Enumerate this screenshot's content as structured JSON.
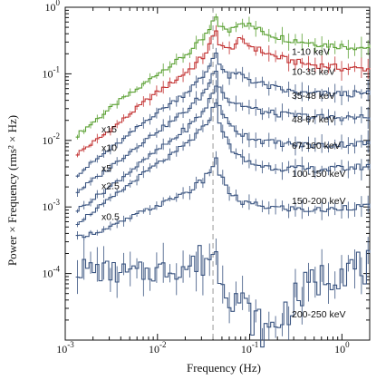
{
  "chart_data": {
    "type": "line",
    "title": "",
    "xlabel": "Frequency (Hz)",
    "ylabel": "Power × Frequency (rms² × Hz)",
    "xscale": "log",
    "yscale": "log",
    "xlim": [
      0.001,
      2
    ],
    "ylim": [
      1e-05,
      1
    ],
    "xtick_labels": [
      {
        "value": 0.001,
        "base": "10",
        "exp": "-3"
      },
      {
        "value": 0.01,
        "base": "10",
        "exp": "-2"
      },
      {
        "value": 0.1,
        "base": "10",
        "exp": "-1"
      },
      {
        "value": 1,
        "base": "10",
        "exp": "0"
      }
    ],
    "ytick_labels": [
      {
        "value": 0.0001,
        "base": "10",
        "exp": "-4"
      },
      {
        "value": 0.001,
        "base": "10",
        "exp": "-3"
      },
      {
        "value": 0.01,
        "base": "10",
        "exp": "-2"
      },
      {
        "value": 0.1,
        "base": "10",
        "exp": "-1"
      },
      {
        "value": 1,
        "base": "10",
        "exp": "0"
      }
    ],
    "qpo_frequency": 0.04,
    "multipliers": [
      {
        "label": "x15",
        "value": 0.012
      },
      {
        "label": "x10",
        "value": 0.0063
      },
      {
        "label": "x5",
        "value": 0.0031
      },
      {
        "label": "x2.5",
        "value": 0.0017
      },
      {
        "label": "x0.5",
        "value": 0.00058
      }
    ],
    "series": [
      {
        "label": "1-10 keV",
        "label_y": 0.22,
        "color": "#5aa032",
        "points": [
          [
            0.0013,
            0.012
          ],
          [
            0.0025,
            0.025
          ],
          [
            0.004,
            0.042
          ],
          [
            0.006,
            0.06
          ],
          [
            0.009,
            0.095
          ],
          [
            0.015,
            0.15
          ],
          [
            0.022,
            0.22
          ],
          [
            0.03,
            0.33
          ],
          [
            0.037,
            0.5
          ],
          [
            0.041,
            0.75
          ],
          [
            0.045,
            0.55
          ],
          [
            0.055,
            0.42
          ],
          [
            0.075,
            0.62
          ],
          [
            0.1,
            0.52
          ],
          [
            0.15,
            0.4
          ],
          [
            0.25,
            0.33
          ],
          [
            0.4,
            0.3
          ],
          [
            0.7,
            0.27
          ],
          [
            1.0,
            0.26
          ],
          [
            1.5,
            0.25
          ],
          [
            2.0,
            0.25
          ]
        ]
      },
      {
        "label": "10-35 keV",
        "label_y": 0.11,
        "color": "#c23030",
        "points": [
          [
            0.0013,
            0.0063
          ],
          [
            0.0025,
            0.012
          ],
          [
            0.004,
            0.02
          ],
          [
            0.006,
            0.032
          ],
          [
            0.009,
            0.05
          ],
          [
            0.015,
            0.08
          ],
          [
            0.022,
            0.12
          ],
          [
            0.03,
            0.18
          ],
          [
            0.037,
            0.3
          ],
          [
            0.041,
            0.45
          ],
          [
            0.045,
            0.3
          ],
          [
            0.055,
            0.22
          ],
          [
            0.075,
            0.32
          ],
          [
            0.1,
            0.26
          ],
          [
            0.15,
            0.2
          ],
          [
            0.25,
            0.16
          ],
          [
            0.4,
            0.14
          ],
          [
            0.7,
            0.13
          ],
          [
            1.0,
            0.12
          ],
          [
            1.5,
            0.12
          ],
          [
            2.0,
            0.12
          ]
        ]
      },
      {
        "label": "35-48 keV",
        "label_y": 0.048,
        "color": "#3a5480",
        "points": [
          [
            0.0013,
            0.0031
          ],
          [
            0.0025,
            0.0062
          ],
          [
            0.004,
            0.01
          ],
          [
            0.006,
            0.016
          ],
          [
            0.009,
            0.025
          ],
          [
            0.015,
            0.04
          ],
          [
            0.022,
            0.06
          ],
          [
            0.03,
            0.09
          ],
          [
            0.037,
            0.15
          ],
          [
            0.041,
            0.24
          ],
          [
            0.045,
            0.14
          ],
          [
            0.055,
            0.09
          ],
          [
            0.075,
            0.1
          ],
          [
            0.1,
            0.08
          ],
          [
            0.15,
            0.065
          ],
          [
            0.25,
            0.055
          ],
          [
            0.4,
            0.05
          ],
          [
            0.7,
            0.05
          ],
          [
            1.0,
            0.05
          ],
          [
            1.5,
            0.05
          ],
          [
            2.0,
            0.05
          ]
        ]
      },
      {
        "label": "48-67 keV",
        "label_y": 0.021,
        "color": "#3a5480",
        "points": [
          [
            0.0013,
            0.0017
          ],
          [
            0.0025,
            0.0033
          ],
          [
            0.004,
            0.0055
          ],
          [
            0.006,
            0.0085
          ],
          [
            0.009,
            0.013
          ],
          [
            0.015,
            0.021
          ],
          [
            0.022,
            0.032
          ],
          [
            0.03,
            0.05
          ],
          [
            0.037,
            0.085
          ],
          [
            0.041,
            0.13
          ],
          [
            0.045,
            0.07
          ],
          [
            0.055,
            0.04
          ],
          [
            0.075,
            0.035
          ],
          [
            0.1,
            0.03
          ],
          [
            0.15,
            0.026
          ],
          [
            0.25,
            0.024
          ],
          [
            0.4,
            0.023
          ],
          [
            0.7,
            0.022
          ],
          [
            1.0,
            0.022
          ],
          [
            1.5,
            0.022
          ],
          [
            2.0,
            0.022
          ]
        ]
      },
      {
        "label": "67-100 keV",
        "label_y": 0.0085,
        "color": "#3a5480",
        "points": [
          [
            0.0013,
            0.0009
          ],
          [
            0.0025,
            0.0017
          ],
          [
            0.004,
            0.0028
          ],
          [
            0.006,
            0.0043
          ],
          [
            0.009,
            0.0067
          ],
          [
            0.015,
            0.011
          ],
          [
            0.022,
            0.017
          ],
          [
            0.03,
            0.027
          ],
          [
            0.037,
            0.045
          ],
          [
            0.041,
            0.07
          ],
          [
            0.045,
            0.035
          ],
          [
            0.055,
            0.018
          ],
          [
            0.075,
            0.013
          ],
          [
            0.1,
            0.011
          ],
          [
            0.15,
            0.0095
          ],
          [
            0.25,
            0.0088
          ],
          [
            0.4,
            0.0085
          ],
          [
            0.7,
            0.0085
          ],
          [
            1.0,
            0.0088
          ],
          [
            1.5,
            0.009
          ],
          [
            2.0,
            0.009
          ]
        ]
      },
      {
        "label": "100-150 keV",
        "label_y": 0.0032,
        "color": "#3a5480",
        "points": [
          [
            0.0013,
            0.00058
          ],
          [
            0.0025,
            0.0011
          ],
          [
            0.004,
            0.0018
          ],
          [
            0.006,
            0.0028
          ],
          [
            0.009,
            0.0042
          ],
          [
            0.015,
            0.0065
          ],
          [
            0.022,
            0.01
          ],
          [
            0.03,
            0.015
          ],
          [
            0.037,
            0.025
          ],
          [
            0.041,
            0.04
          ],
          [
            0.045,
            0.02
          ],
          [
            0.055,
            0.009
          ],
          [
            0.075,
            0.0055
          ],
          [
            0.1,
            0.0045
          ],
          [
            0.15,
            0.004
          ],
          [
            0.25,
            0.0038
          ],
          [
            0.4,
            0.0037
          ],
          [
            0.7,
            0.0037
          ],
          [
            1.0,
            0.0038
          ],
          [
            1.5,
            0.004
          ],
          [
            2.0,
            0.004
          ]
        ]
      },
      {
        "label": "150-200 keV",
        "label_y": 0.00125,
        "color": "#3a5480",
        "points": [
          [
            0.0013,
            0.00035
          ],
          [
            0.0025,
            0.00045
          ],
          [
            0.004,
            0.0006
          ],
          [
            0.006,
            0.0008
          ],
          [
            0.009,
            0.001
          ],
          [
            0.015,
            0.0014
          ],
          [
            0.022,
            0.0018
          ],
          [
            0.03,
            0.0025
          ],
          [
            0.037,
            0.0038
          ],
          [
            0.041,
            0.0055
          ],
          [
            0.045,
            0.0032
          ],
          [
            0.055,
            0.0018
          ],
          [
            0.075,
            0.0012
          ],
          [
            0.1,
            0.0011
          ],
          [
            0.15,
            0.001
          ],
          [
            0.25,
            0.00095
          ],
          [
            0.4,
            0.0009
          ],
          [
            0.7,
            0.0009
          ],
          [
            1.0,
            0.001
          ],
          [
            1.5,
            0.001
          ],
          [
            2.0,
            0.001
          ]
        ]
      },
      {
        "label": "200-250 keV",
        "label_y": 2.5e-05,
        "color": "#3a5480",
        "points": [
          [
            0.0013,
            0.00012
          ],
          [
            0.0025,
            0.00011
          ],
          [
            0.004,
            0.0001
          ],
          [
            0.006,
            0.0001
          ],
          [
            0.009,
            0.00011
          ],
          [
            0.015,
            0.00012
          ],
          [
            0.022,
            0.00013
          ],
          [
            0.03,
            0.00016
          ],
          [
            0.037,
            0.0002
          ],
          [
            0.041,
            0.00018
          ],
          [
            0.045,
            0.00012
          ],
          [
            0.055,
            6e-05
          ],
          [
            0.075,
            4e-05
          ],
          [
            0.1,
            2.2e-05
          ],
          [
            0.15,
            1.2e-05
          ],
          [
            0.25,
            3e-05
          ],
          [
            0.4,
            6e-05
          ],
          [
            0.7,
            0.0001
          ],
          [
            1.0,
            0.00012
          ],
          [
            1.5,
            0.00012
          ],
          [
            2.0,
            0.00012
          ]
        ]
      }
    ]
  }
}
